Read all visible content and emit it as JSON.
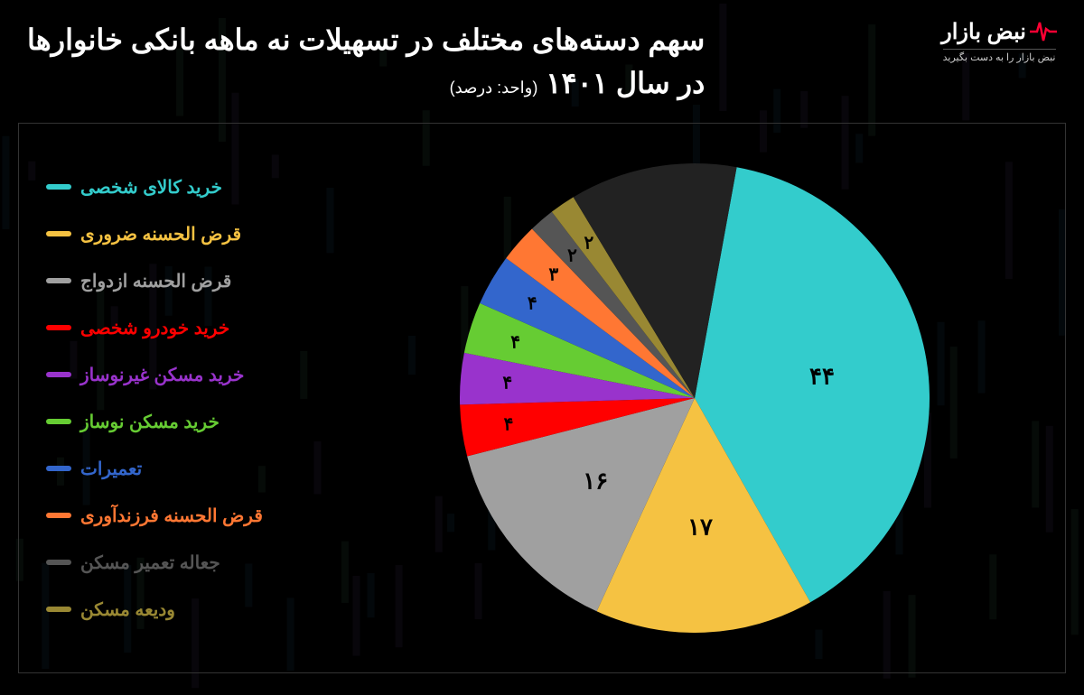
{
  "title_line1": "سهم دسته‌های مختلف در تسهیلات نه ماهه بانکی خانوارها",
  "title_line2": "در سال ۱۴۰۱",
  "unit": "(واحد: درصد)",
  "logo": {
    "text": "نبض بازار",
    "tagline": "نبض بازار را به دست بگیرید"
  },
  "background_color": "#000000",
  "chart": {
    "type": "pie",
    "remaining_value": 13,
    "slices": [
      {
        "label": "خرید کالای شخصی",
        "value": 44,
        "color": "#33cccc",
        "text": "۴۴",
        "show_text": true
      },
      {
        "label": "قرض الحسنه ضروری",
        "value": 17,
        "color": "#f5c242",
        "text": "۱۷",
        "show_text": true
      },
      {
        "label": "قرض الحسنه ازدواج",
        "value": 16,
        "color": "#a0a0a0",
        "text": "۱۶",
        "show_text": true
      },
      {
        "label": "خرید خودرو شخصی",
        "value": 4,
        "color": "#ff0000",
        "text": "۴",
        "show_text": true
      },
      {
        "label": "خرید مسکن غیرنوساز",
        "value": 4,
        "color": "#9933cc",
        "text": "۴",
        "show_text": true
      },
      {
        "label": "خرید مسکن نوساز",
        "value": 4,
        "color": "#66cc33",
        "text": "۴",
        "show_text": true
      },
      {
        "label": "تعمیرات",
        "value": 4,
        "color": "#3366cc",
        "text": "۴",
        "show_text": true
      },
      {
        "label": "قرض الحسنه فرزندآوری",
        "value": 3,
        "color": "#ff7733",
        "text": "۳",
        "show_text": true
      },
      {
        "label": "جعاله تعمیر مسکن",
        "value": 2,
        "color": "#555555",
        "text": "۲",
        "show_text": true
      },
      {
        "label": "ودیعه مسکن",
        "value": 2,
        "color": "#998833",
        "text": "۲",
        "show_text": true
      }
    ],
    "label_fontsize": 26,
    "label_color": "#000000",
    "legend_fontsize": 20
  },
  "bg_bars": {
    "colors": [
      "#1a3a4a",
      "#2a4a3a",
      "#3a2a4a"
    ]
  }
}
